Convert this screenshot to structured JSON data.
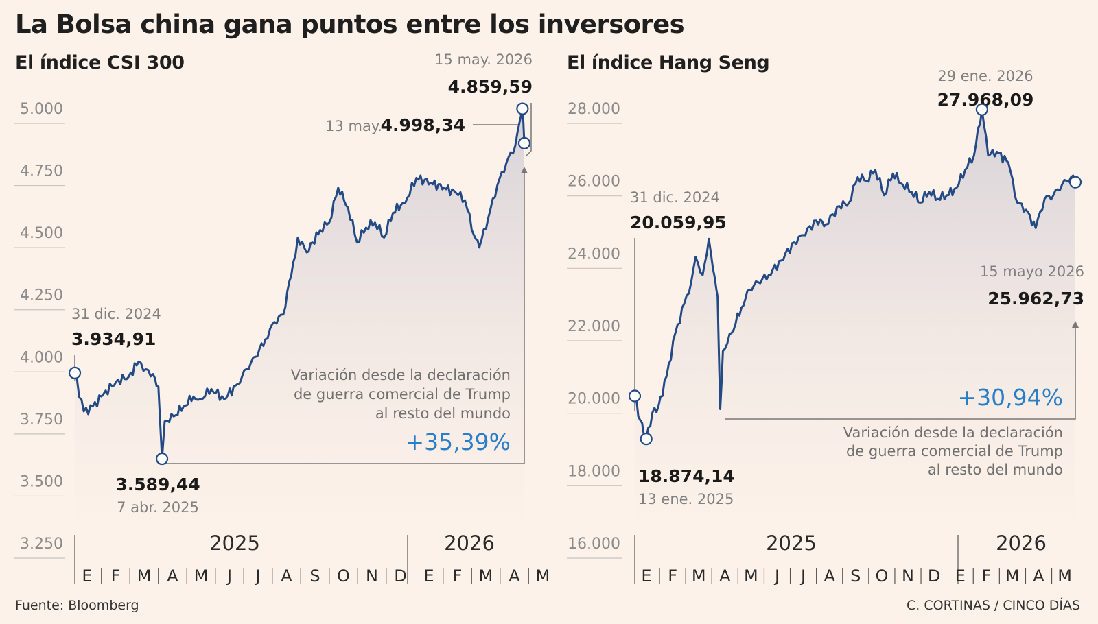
{
  "title": "La Bolsa china gana puntos entre los inversores",
  "footer": {
    "source": "Fuente: Bloomberg",
    "credit": "C. CORTINAS / CINCO DÍAS"
  },
  "colors": {
    "line": "#234a85",
    "percent": "#2a7ec8",
    "background": "#fdf2e9"
  },
  "chart_data": [
    {
      "type": "line",
      "title": "El índice CSI 300",
      "ylim": [
        3250,
        5000
      ],
      "yticks": [
        5000,
        4750,
        4500,
        4250,
        4000,
        3750,
        3500,
        3250
      ],
      "ytick_labels": [
        "5.000",
        "4.750",
        "4.500",
        "4.250",
        "4.000",
        "3.750",
        "3.500",
        "3.250"
      ],
      "grid": true,
      "years": [
        "2025",
        "2026"
      ],
      "months": [
        "E",
        "F",
        "M",
        "A",
        "M",
        "J",
        "J",
        "A",
        "S",
        "O",
        "N",
        "D",
        "E",
        "F",
        "M",
        "A",
        "M"
      ],
      "x": [
        "2024-12-31",
        "2025-01-10",
        "2025-01-20",
        "2025-02-01",
        "2025-02-15",
        "2025-03-01",
        "2025-03-12",
        "2025-03-20",
        "2025-03-28",
        "2025-04-03",
        "2025-04-07",
        "2025-04-10",
        "2025-04-20",
        "2025-05-01",
        "2025-05-12",
        "2025-05-20",
        "2025-06-01",
        "2025-06-15",
        "2025-06-30",
        "2025-07-10",
        "2025-07-20",
        "2025-07-31",
        "2025-08-10",
        "2025-08-20",
        "2025-08-31",
        "2025-09-05",
        "2025-09-15",
        "2025-09-30",
        "2025-10-10",
        "2025-10-20",
        "2025-10-31",
        "2025-11-10",
        "2025-11-20",
        "2025-11-30",
        "2025-12-10",
        "2025-12-20",
        "2025-12-31",
        "2026-01-05",
        "2026-01-15",
        "2026-01-31",
        "2026-02-15",
        "2026-02-28",
        "2026-03-10",
        "2026-03-20",
        "2026-03-26",
        "2026-04-05",
        "2026-04-15",
        "2026-04-25",
        "2026-05-05",
        "2026-05-13",
        "2026-05-15"
      ],
      "values": [
        3934.91,
        3780,
        3800,
        3850,
        3900,
        3920,
        3980,
        3950,
        3930,
        3880,
        3589.44,
        3740,
        3760,
        3800,
        3840,
        3830,
        3870,
        3830,
        3890,
        3950,
        4000,
        4070,
        4140,
        4170,
        4380,
        4480,
        4420,
        4510,
        4540,
        4680,
        4600,
        4460,
        4520,
        4540,
        4480,
        4580,
        4620,
        4640,
        4720,
        4700,
        4680,
        4660,
        4630,
        4490,
        4440,
        4560,
        4690,
        4780,
        4850,
        4998.34,
        4859.59
      ],
      "annotations": [
        {
          "date": "31 dic. 2024",
          "value": "3.934,91"
        },
        {
          "date": "7 abr. 2025",
          "value": "3.589,44"
        },
        {
          "date": "13 may.",
          "value": "4.998,34"
        },
        {
          "date": "15 may. 2026",
          "value": "4.859,59"
        }
      ],
      "note": [
        "Variación desde la declaración",
        "de guerra comercial de Trump",
        "al resto del mundo"
      ],
      "change": "+35,39%"
    },
    {
      "type": "line",
      "title": "El índice Hang Seng",
      "ylim": [
        16000,
        28000
      ],
      "yticks": [
        28000,
        26000,
        24000,
        22000,
        20000,
        18000,
        16000
      ],
      "ytick_labels": [
        "28.000",
        "26.000",
        "24.000",
        "22.000",
        "20.000",
        "18.000",
        "16.000"
      ],
      "grid": true,
      "years": [
        "2025",
        "2026"
      ],
      "months": [
        "E",
        "F",
        "M",
        "A",
        "M",
        "J",
        "J",
        "A",
        "S",
        "O",
        "N",
        "D",
        "E",
        "F",
        "M",
        "A",
        "M"
      ],
      "x": [
        "2024-12-31",
        "2025-01-06",
        "2025-01-13",
        "2025-01-20",
        "2025-01-27",
        "2025-02-05",
        "2025-02-15",
        "2025-02-25",
        "2025-03-05",
        "2025-03-10",
        "2025-03-18",
        "2025-03-25",
        "2025-04-01",
        "2025-04-04",
        "2025-04-07",
        "2025-04-10",
        "2025-04-20",
        "2025-05-01",
        "2025-05-10",
        "2025-05-20",
        "2025-06-01",
        "2025-06-15",
        "2025-06-30",
        "2025-07-10",
        "2025-07-25",
        "2025-08-05",
        "2025-08-20",
        "2025-08-31",
        "2025-09-10",
        "2025-09-20",
        "2025-09-30",
        "2025-10-10",
        "2025-10-20",
        "2025-10-31",
        "2025-11-10",
        "2025-11-20",
        "2025-11-30",
        "2025-12-10",
        "2025-12-20",
        "2025-12-31",
        "2026-01-10",
        "2026-01-20",
        "2026-01-29",
        "2026-02-05",
        "2026-02-15",
        "2026-02-28",
        "2026-03-10",
        "2026-03-20",
        "2026-03-31",
        "2026-04-10",
        "2026-04-20",
        "2026-04-30",
        "2026-05-10",
        "2026-05-15"
      ],
      "values": [
        20059.95,
        19400,
        18874.14,
        19600,
        19800,
        20600,
        21800,
        22600,
        23200,
        23900,
        23400,
        24400,
        23300,
        22800,
        19700,
        21300,
        21800,
        22500,
        23000,
        23200,
        23400,
        23800,
        24300,
        24500,
        24900,
        24800,
        25300,
        25400,
        26100,
        26000,
        26300,
        25600,
        26200,
        25900,
        25700,
        25400,
        25700,
        25500,
        25600,
        25800,
        26300,
        26700,
        27968.09,
        26700,
        26800,
        26500,
        25400,
        25200,
        24700,
        25500,
        25600,
        25900,
        26100,
        25962.73
      ],
      "annotations": [
        {
          "date": "31 dic. 2024",
          "value": "20.059,95"
        },
        {
          "date": "13 ene. 2025",
          "value": "18.874,14"
        },
        {
          "date": "29 ene. 2026",
          "value": "27.968,09"
        },
        {
          "date": "15 mayo 2026",
          "value": "25.962,73"
        }
      ],
      "note": [
        "Variación desde la declaración",
        "de guerra comercial de Trump",
        "al resto del mundo"
      ],
      "change": "+30,94%"
    }
  ]
}
